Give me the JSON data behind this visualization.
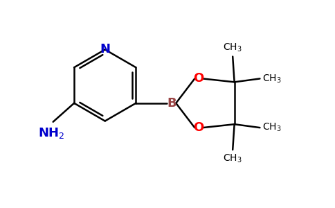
{
  "bg_color": "#ffffff",
  "bond_color": "#000000",
  "N_color": "#0000cc",
  "O_color": "#ff0000",
  "B_color": "#994444",
  "label_color": "#000000",
  "figsize": [
    4.84,
    3.0
  ],
  "dpi": 100,
  "xlim": [
    0,
    9.68
  ],
  "ylim": [
    0,
    6.0
  ]
}
